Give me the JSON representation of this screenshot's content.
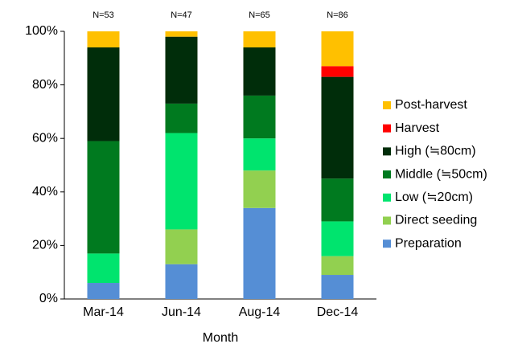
{
  "chart_data": {
    "type": "stacked_bar",
    "x_label": "Month",
    "categories": [
      "Mar-14",
      "Jun-14",
      "Aug-14",
      "Dec-14"
    ],
    "annotations": [
      "N=53",
      "N=47",
      "N=65",
      "N=86"
    ],
    "series": [
      {
        "name": "Preparation",
        "color": "#558ed5",
        "values": [
          6,
          13,
          34,
          9
        ]
      },
      {
        "name": "Direct seeding",
        "color": "#92d050",
        "values": [
          0,
          13,
          14,
          7
        ]
      },
      {
        "name": "Low (≒20cm)",
        "color": "#00e46e",
        "values": [
          11,
          36,
          12,
          13
        ]
      },
      {
        "name": "Middle (≒50cm)",
        "color": "#007a1f",
        "values": [
          42,
          11,
          16,
          16
        ]
      },
      {
        "name": "High (≒80cm)",
        "color": "#002d0a",
        "values": [
          35,
          25,
          18,
          38
        ]
      },
      {
        "name": "Harvest",
        "color": "#ff0000",
        "values": [
          0,
          0,
          0,
          4
        ]
      },
      {
        "name": "Post-harvest",
        "color": "#ffc000",
        "values": [
          6,
          2,
          6,
          13
        ]
      }
    ],
    "ylim": [
      0,
      100
    ],
    "yticks": [
      {
        "value": 0,
        "label": "0%"
      },
      {
        "value": 20,
        "label": "20%"
      },
      {
        "value": 40,
        "label": "40%"
      },
      {
        "value": 60,
        "label": "60%"
      },
      {
        "value": 80,
        "label": "80%"
      },
      {
        "value": 100,
        "label": "100%"
      }
    ],
    "grid": false,
    "legend": "right"
  }
}
